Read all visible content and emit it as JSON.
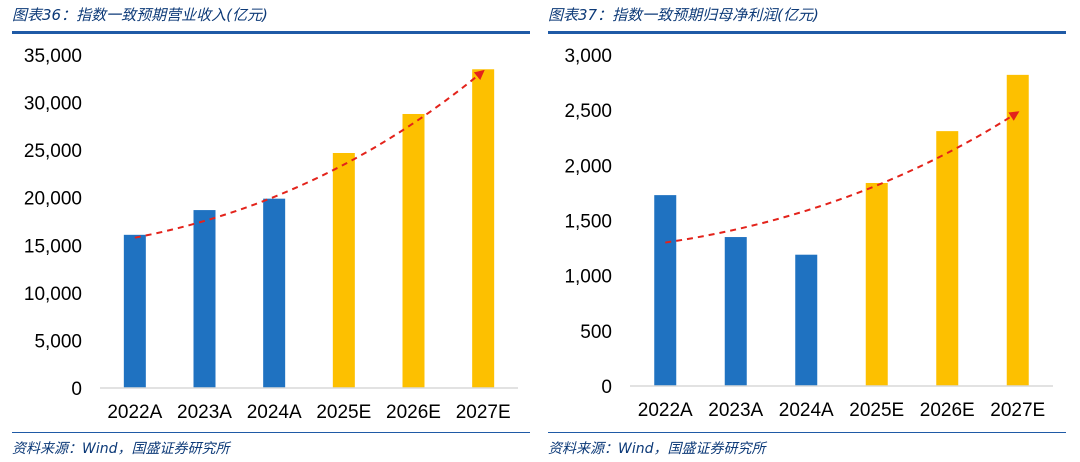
{
  "charts": [
    {
      "title": "图表36：指数一致预期营业收入(亿元)",
      "source": "资料来源：Wind，国盛证券研究所"
    },
    {
      "title": "图表37：指数一致预期归母净利润(亿元)",
      "source": "资料来源：Wind，国盛证券研究所"
    }
  ],
  "colors": {
    "actual": "#1f72c1",
    "estimate": "#fdc000",
    "trend": "#e3231b",
    "title": "#0d3a78"
  },
  "chart_data": [
    {
      "type": "bar",
      "title": "图表36：指数一致预期营业收入(亿元)",
      "categories": [
        "2022A",
        "2023A",
        "2024A",
        "2025E",
        "2026E",
        "2027E"
      ],
      "values": [
        16100,
        18700,
        19900,
        24700,
        28800,
        33500
      ],
      "bar_kinds": [
        "actual",
        "actual",
        "actual",
        "estimate",
        "estimate",
        "estimate"
      ],
      "ylim": [
        0,
        35000
      ],
      "yticks": [
        0,
        5000,
        10000,
        15000,
        20000,
        25000,
        30000,
        35000
      ],
      "ytick_labels": [
        "0",
        "5,000",
        "10,000",
        "15,000",
        "20,000",
        "25,000",
        "30,000",
        "35,000"
      ],
      "trend_line": {
        "style": "dashed",
        "arrow": true,
        "y_start": 15800,
        "y_end": 33300
      },
      "grid": false
    },
    {
      "type": "bar",
      "title": "图表37：指数一致预期归母净利润(亿元)",
      "categories": [
        "2022A",
        "2023A",
        "2024A",
        "2025E",
        "2026E",
        "2027E"
      ],
      "values": [
        1730,
        1350,
        1190,
        1840,
        2310,
        2820
      ],
      "bar_kinds": [
        "actual",
        "actual",
        "actual",
        "estimate",
        "estimate",
        "estimate"
      ],
      "ylim": [
        0,
        3000
      ],
      "yticks": [
        0,
        500,
        1000,
        1500,
        2000,
        2500,
        3000
      ],
      "ytick_labels": [
        "0",
        "500",
        "1,000",
        "1,500",
        "2,000",
        "2,500",
        "3,000"
      ],
      "trend_line": {
        "style": "dashed",
        "arrow": true,
        "y_start": 1300,
        "y_end": 2480
      },
      "grid": false
    }
  ]
}
